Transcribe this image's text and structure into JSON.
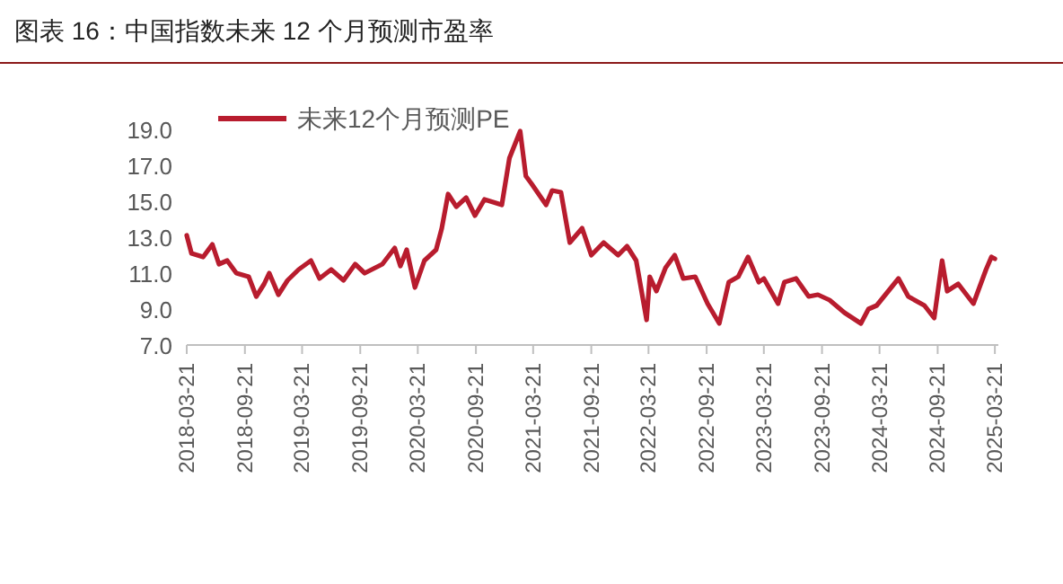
{
  "chart_data": {
    "type": "line",
    "title": "图表 16：中国指数未来 12 个月预测市盈率",
    "x": [
      "2018-03-21",
      "2018-04-05",
      "2018-05-12",
      "2018-06-10",
      "2018-07-01",
      "2018-07-27",
      "2018-08-25",
      "2018-10-03",
      "2018-10-27",
      "2018-11-21",
      "2018-12-07",
      "2019-01-05",
      "2019-02-03",
      "2019-03-10",
      "2019-04-18",
      "2019-05-15",
      "2019-06-21",
      "2019-07-30",
      "2019-09-05",
      "2019-10-05",
      "2019-11-30",
      "2020-01-08",
      "2020-01-26",
      "2020-02-15",
      "2020-03-12",
      "2020-04-11",
      "2020-05-18",
      "2020-06-05",
      "2020-06-25",
      "2020-07-21",
      "2020-08-21",
      "2020-09-18",
      "2020-10-18",
      "2020-12-12",
      "2021-01-05",
      "2021-02-08",
      "2021-02-26",
      "2021-03-15",
      "2021-05-01",
      "2021-05-20",
      "2021-06-17",
      "2021-07-15",
      "2021-08-23",
      "2021-09-21",
      "2021-10-30",
      "2021-12-15",
      "2022-01-12",
      "2022-02-10",
      "2022-03-15",
      "2022-03-25",
      "2022-04-15",
      "2022-05-14",
      "2022-06-12",
      "2022-07-09",
      "2022-08-16",
      "2022-09-24",
      "2022-10-31",
      "2022-11-30",
      "2022-12-30",
      "2023-01-30",
      "2023-03-05",
      "2023-03-21",
      "2023-05-05",
      "2023-05-25",
      "2023-07-01",
      "2023-08-10",
      "2023-09-08",
      "2023-10-15",
      "2023-12-01",
      "2024-01-22",
      "2024-02-15",
      "2024-03-12",
      "2024-05-20",
      "2024-06-20",
      "2024-08-10",
      "2024-09-10",
      "2024-10-05",
      "2024-10-21",
      "2024-11-25",
      "2025-01-12",
      "2025-02-21",
      "2025-03-10",
      "2025-03-21"
    ],
    "series": [
      {
        "name": "未来12个月预测PE",
        "color": "#b81c2e",
        "values": [
          13.1,
          12.1,
          11.9,
          12.6,
          11.5,
          11.7,
          11.0,
          10.8,
          9.7,
          10.4,
          11.0,
          9.8,
          10.6,
          11.2,
          11.7,
          10.7,
          11.2,
          10.6,
          11.5,
          11.0,
          11.5,
          12.4,
          11.4,
          12.3,
          10.2,
          11.7,
          12.3,
          13.5,
          15.4,
          14.7,
          15.2,
          14.2,
          15.1,
          14.8,
          17.4,
          18.9,
          16.4,
          16.0,
          14.8,
          15.6,
          15.5,
          12.7,
          13.5,
          12.0,
          12.7,
          12.0,
          12.5,
          11.7,
          8.4,
          10.8,
          10.0,
          11.3,
          12.0,
          10.7,
          10.8,
          9.3,
          8.2,
          10.5,
          10.8,
          11.9,
          10.5,
          10.7,
          9.3,
          10.5,
          10.7,
          9.7,
          9.8,
          9.5,
          8.8,
          8.2,
          9.0,
          9.2,
          10.7,
          9.7,
          9.2,
          8.5,
          11.7,
          10.0,
          10.4,
          9.3,
          11.2,
          11.9,
          11.8
        ]
      }
    ],
    "xlim": [
      "2018-03-21",
      "2025-04-01"
    ],
    "xticks": [
      "2018-03-21",
      "2018-09-21",
      "2019-03-21",
      "2019-09-21",
      "2020-03-21",
      "2020-09-21",
      "2021-03-21",
      "2021-09-21",
      "2022-03-21",
      "2022-09-21",
      "2023-03-21",
      "2023-09-21",
      "2024-03-21",
      "2024-09-21",
      "2025-03-21"
    ],
    "ylim": [
      7,
      19
    ],
    "yticks": [
      {
        "value": 7,
        "label": "7.0"
      },
      {
        "value": 9,
        "label": "9.0"
      },
      {
        "value": 11,
        "label": "11.0"
      },
      {
        "value": 13,
        "label": "13.0"
      },
      {
        "value": 15,
        "label": "15.0"
      },
      {
        "value": 17,
        "label": "17.0"
      },
      {
        "value": 19,
        "label": "19.0"
      }
    ],
    "grid": false,
    "legend": "top left",
    "line_style": "solid",
    "marker": "none"
  }
}
